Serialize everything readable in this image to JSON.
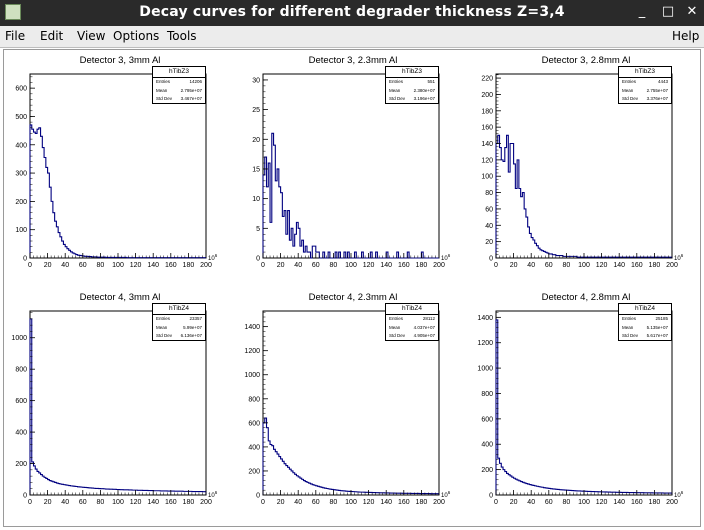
{
  "window": {
    "title": "Decay curves for different degrader thickness Z=3,4",
    "buttons": [
      "_",
      "□",
      "✕"
    ]
  },
  "menubar": {
    "file": "File",
    "edit": "Edit",
    "view": "View",
    "options": "Options",
    "tools": "Tools",
    "help": "Help"
  },
  "pads": [
    {
      "title": "Detector 3, 3mm Al",
      "stats": {
        "name": "hTibZ3",
        "entries_label": "Entries",
        "entries": "14206",
        "mean_label": "Mean",
        "mean": "2.795e+07",
        "std_label": "Std Dev",
        "std": "3.467e+07"
      }
    },
    {
      "title": "Detector 3, 2.3mm Al",
      "stats": {
        "name": "hTibZ3",
        "entries_label": "Entries",
        "entries": "551",
        "mean_label": "Mean",
        "mean": "2.380e+07",
        "std_label": "Std Dev",
        "std": "3.196e+07"
      }
    },
    {
      "title": "Detector 3, 2.8mm Al",
      "stats": {
        "name": "hTibZ3",
        "entries_label": "Entries",
        "entries": "4443",
        "mean_label": "Mean",
        "mean": "2.755e+07",
        "std_label": "Std Dev",
        "std": "3.376e+07"
      }
    },
    {
      "title": "Detector 4, 3mm Al",
      "stats": {
        "name": "hTibZ4",
        "entries_label": "Entries",
        "entries": "23357",
        "mean_label": "Mean",
        "mean": "5.99e+07",
        "std_label": "Std Dev",
        "std": "6.136e+07"
      }
    },
    {
      "title": "Detector 4, 2.3mm Al",
      "stats": {
        "name": "hTibZ4",
        "entries_label": "Entries",
        "entries": "28112",
        "mean_label": "Mean",
        "mean": "4.037e+07",
        "std_label": "Std Dev",
        "std": "4.905e+07"
      }
    },
    {
      "title": "Detector 4, 2.8mm Al",
      "stats": {
        "name": "hTibZ4",
        "entries_label": "Entries",
        "entries": "25185",
        "mean_label": "Mean",
        "mean": "5.135e+07",
        "std_label": "Std Dev",
        "std": "5.617e+07"
      }
    }
  ],
  "chart_data": [
    {
      "type": "bar",
      "title": "Detector 3, 3mm Al",
      "x_exponent": "10^6",
      "xlim": [
        0,
        200
      ],
      "ylim": [
        0,
        650
      ],
      "xticks": [
        0,
        20,
        40,
        60,
        80,
        100,
        120,
        140,
        160,
        180,
        200
      ],
      "yticks": [
        0,
        100,
        200,
        300,
        400,
        500,
        600
      ],
      "x_step": 2,
      "values": [
        470,
        455,
        445,
        440,
        455,
        460,
        430,
        390,
        355,
        320,
        300,
        250,
        200,
        160,
        130,
        110,
        90,
        75,
        60,
        48,
        40,
        33,
        27,
        22,
        18,
        15,
        12,
        10,
        9,
        8,
        7,
        6,
        6,
        5,
        5,
        4,
        4,
        4,
        3,
        3,
        3,
        3,
        3,
        2,
        2,
        2,
        2,
        2,
        2,
        2,
        2,
        2,
        2,
        2,
        2,
        1,
        1,
        1,
        1,
        1,
        1,
        1,
        1,
        1,
        1,
        1,
        1,
        1,
        1,
        1,
        1,
        1,
        1,
        1,
        1,
        1,
        1,
        1,
        1,
        1,
        1,
        1,
        1,
        1,
        1,
        1,
        1,
        1,
        1,
        1,
        1,
        1,
        1,
        1,
        1,
        1,
        1,
        1,
        1,
        1
      ]
    },
    {
      "type": "bar",
      "title": "Detector 3, 2.3mm Al",
      "x_exponent": "10^6",
      "xlim": [
        0,
        200
      ],
      "ylim": [
        0,
        31
      ],
      "xticks": [
        0,
        20,
        40,
        60,
        80,
        100,
        120,
        140,
        160,
        180,
        200
      ],
      "yticks": [
        0,
        5,
        10,
        15,
        20,
        25,
        30
      ],
      "x_step": 2,
      "values": [
        14,
        17,
        12,
        16,
        6,
        21,
        19,
        13,
        15,
        12,
        11,
        7,
        8,
        4,
        8,
        3,
        5,
        2,
        4,
        6,
        5,
        2,
        3,
        1,
        2,
        1,
        1,
        0,
        2,
        2,
        1,
        1,
        0,
        0,
        1,
        0,
        0,
        1,
        0,
        0,
        0,
        1,
        0,
        1,
        0,
        0,
        1,
        0,
        1,
        0,
        0,
        0,
        1,
        0,
        0,
        0,
        1,
        0,
        0,
        0,
        0,
        1,
        0,
        0,
        1,
        0,
        0,
        0,
        0,
        0,
        1,
        0,
        0,
        0,
        0,
        0,
        1,
        0,
        0,
        0,
        0,
        0,
        1,
        0,
        0,
        0,
        0,
        0,
        0,
        0,
        1,
        0,
        0,
        0,
        0,
        0,
        0,
        0,
        0,
        0
      ]
    },
    {
      "type": "bar",
      "title": "Detector 3, 2.8mm Al",
      "x_exponent": "10^6",
      "xlim": [
        0,
        200
      ],
      "ylim": [
        0,
        225
      ],
      "xticks": [
        0,
        20,
        40,
        60,
        80,
        100,
        120,
        140,
        160,
        180,
        200
      ],
      "yticks": [
        0,
        20,
        40,
        60,
        80,
        100,
        120,
        140,
        160,
        180,
        200,
        220
      ],
      "x_step": 2,
      "values": [
        140,
        150,
        135,
        120,
        118,
        135,
        150,
        105,
        140,
        140,
        115,
        85,
        120,
        85,
        75,
        80,
        60,
        50,
        38,
        30,
        25,
        22,
        18,
        15,
        12,
        10,
        9,
        8,
        7,
        6,
        5,
        5,
        4,
        4,
        3,
        3,
        3,
        3,
        2,
        2,
        2,
        2,
        2,
        2,
        2,
        2,
        1,
        1,
        1,
        1,
        1,
        1,
        1,
        1,
        1,
        1,
        1,
        1,
        1,
        1,
        1,
        1,
        1,
        1,
        1,
        1,
        1,
        1,
        1,
        1,
        1,
        1,
        1,
        1,
        1,
        1,
        1,
        1,
        1,
        1,
        1,
        1,
        1,
        1,
        1,
        1,
        1,
        1,
        1,
        1,
        1,
        1,
        1,
        1,
        1,
        1,
        1,
        1,
        1,
        1
      ]
    },
    {
      "type": "bar",
      "title": "Detector 4, 3mm Al",
      "x_exponent": "10^6",
      "xlim": [
        0,
        200
      ],
      "ylim": [
        0,
        1170
      ],
      "xticks": [
        0,
        20,
        40,
        60,
        80,
        100,
        120,
        140,
        160,
        180,
        200
      ],
      "yticks": [
        0,
        200,
        400,
        600,
        800,
        1000
      ],
      "x_step": 2,
      "values": [
        1120,
        210,
        185,
        165,
        150,
        140,
        130,
        120,
        112,
        105,
        98,
        92,
        88,
        84,
        80,
        76,
        73,
        70,
        68,
        66,
        64,
        62,
        60,
        58,
        57,
        55,
        54,
        52,
        51,
        50,
        49,
        48,
        47,
        46,
        45,
        44,
        43,
        42,
        42,
        41,
        40,
        40,
        39,
        38,
        38,
        37,
        37,
        36,
        36,
        35,
        35,
        34,
        34,
        33,
        33,
        33,
        32,
        32,
        31,
        31,
        31,
        30,
        30,
        30,
        29,
        29,
        29,
        28,
        28,
        28,
        27,
        27,
        27,
        27,
        26,
        26,
        26,
        26,
        25,
        25,
        25,
        25,
        24,
        24,
        24,
        24,
        24,
        23,
        23,
        23,
        23,
        23,
        22,
        22,
        22,
        22,
        22,
        22,
        21,
        21
      ]
    },
    {
      "type": "bar",
      "title": "Detector 4, 2.3mm Al",
      "x_exponent": "10^6",
      "xlim": [
        0,
        200
      ],
      "ylim": [
        0,
        1530
      ],
      "xticks": [
        0,
        20,
        40,
        60,
        80,
        100,
        120,
        140,
        160,
        180,
        200
      ],
      "yticks": [
        0,
        200,
        400,
        600,
        800,
        1000,
        1200,
        1400
      ],
      "x_step": 2,
      "values": [
        600,
        640,
        560,
        450,
        420,
        410,
        380,
        360,
        340,
        320,
        300,
        280,
        260,
        245,
        230,
        215,
        200,
        185,
        172,
        160,
        150,
        140,
        130,
        120,
        112,
        105,
        98,
        92,
        86,
        81,
        76,
        72,
        68,
        64,
        60,
        57,
        54,
        51,
        48,
        46,
        44,
        42,
        40,
        38,
        36,
        35,
        34,
        32,
        31,
        30,
        29,
        28,
        27,
        26,
        25,
        24,
        24,
        23,
        22,
        22,
        21,
        21,
        20,
        20,
        19,
        19,
        18,
        18,
        18,
        17,
        17,
        17,
        16,
        16,
        16,
        15,
        15,
        15,
        15,
        14,
        14,
        14,
        14,
        14,
        13,
        13,
        13,
        13,
        13,
        12,
        12,
        12,
        12,
        12,
        12,
        11,
        11,
        11,
        11,
        11
      ]
    },
    {
      "type": "bar",
      "title": "Detector 4, 2.8mm Al",
      "x_exponent": "10^6",
      "xlim": [
        0,
        200
      ],
      "ylim": [
        0,
        1450
      ],
      "xticks": [
        0,
        20,
        40,
        60,
        80,
        100,
        120,
        140,
        160,
        180,
        200
      ],
      "yticks": [
        0,
        200,
        400,
        600,
        800,
        1000,
        1200,
        1400
      ],
      "x_step": 2,
      "values": [
        1380,
        290,
        250,
        220,
        200,
        185,
        170,
        160,
        150,
        140,
        132,
        125,
        118,
        112,
        106,
        100,
        95,
        90,
        86,
        82,
        78,
        75,
        72,
        69,
        66,
        63,
        61,
        58,
        56,
        54,
        52,
        50,
        48,
        47,
        45,
        44,
        42,
        41,
        40,
        39,
        38,
        37,
        36,
        35,
        34,
        33,
        32,
        32,
        31,
        30,
        30,
        29,
        28,
        28,
        27,
        27,
        26,
        26,
        25,
        25,
        24,
        24,
        24,
        23,
        23,
        22,
        22,
        22,
        21,
        21,
        21,
        20,
        20,
        20,
        20,
        19,
        19,
        19,
        19,
        18,
        18,
        18,
        18,
        18,
        17,
        17,
        17,
        17,
        17,
        16,
        16,
        16,
        16,
        16,
        16,
        15,
        15,
        15,
        15,
        15
      ]
    }
  ]
}
